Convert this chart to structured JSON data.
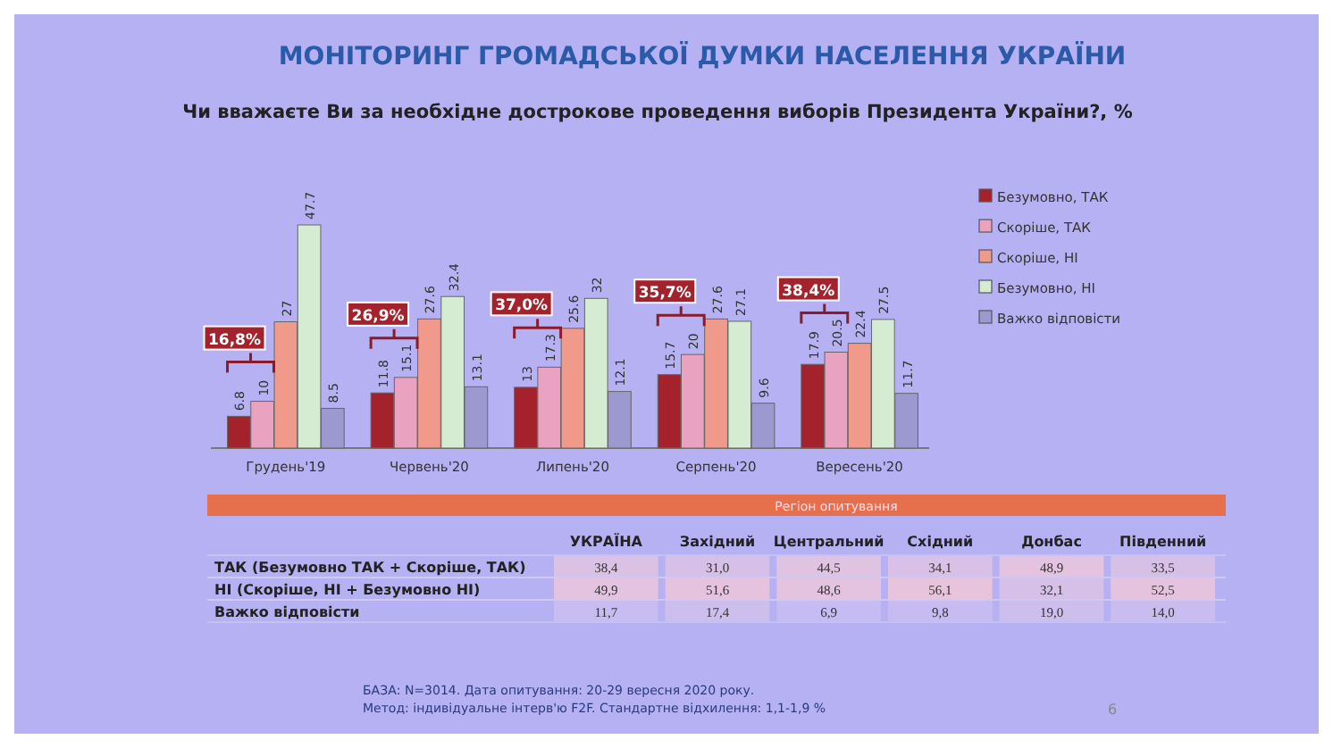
{
  "chart_data": [
    {
      "type": "bar",
      "title": "МОНІТОРИНГ ГРОМАДСЬКОЇ ДУМКИ НАСЕЛЕННЯ УКРАЇНИ",
      "subtitle": "Чи вважаєте Ви за необхідне дострокове проведення виборів Президента  України?, %",
      "categories": [
        "Грудень'19",
        "Червень'20",
        "Липень'20",
        "Серпень'20",
        "Вересень'20"
      ],
      "series": [
        {
          "name": "Безумовно, ТАК",
          "color": "#a3222c",
          "values": [
            6.8,
            11.8,
            13,
            15.7,
            17.9
          ]
        },
        {
          "name": "Скоріше, ТАК",
          "color": "#e9a3c0",
          "values": [
            10,
            15.1,
            17.3,
            20,
            20.5
          ]
        },
        {
          "name": "Скоріше, НІ",
          "color": "#f09a8c",
          "values": [
            27,
            27.6,
            25.6,
            27.6,
            22.4
          ]
        },
        {
          "name": "Безумовно, НІ",
          "color": "#d6ecd2",
          "values": [
            47.7,
            32.4,
            32,
            27.1,
            27.5
          ]
        },
        {
          "name": "Важко відповісти",
          "color": "#9c98d0",
          "values": [
            8.5,
            13.1,
            12.1,
            9.6,
            11.7
          ]
        }
      ],
      "data_labels": true,
      "legend": "right",
      "annotations": [
        "16,8%",
        "26,9%",
        "37,0%",
        "35,7%",
        "38,4%",
        "БАЗА: N=3014. Дата опитування: 20-29 вересня 2020 року.",
        "Метод: індивідуальне інтерв'ю F2F. Стандартне відхилення: 1,1-1,9 %",
        "6"
      ]
    },
    {
      "type": "heatmap",
      "title": "Регіон опитування",
      "categories": [
        "УКРАЇНА",
        "Західний",
        "Центральний",
        "Східний",
        "Донбас",
        "Південний"
      ],
      "y_categories": [
        "ТАК (Безумовно ТАК + Скоріше, ТАК)",
        "НІ (Скоріше, НІ + Безумовно НІ)",
        "Важко відповісти"
      ],
      "cells": [
        [
          38.4,
          31.0,
          44.5,
          34.1,
          48.9,
          33.5
        ],
        [
          49.9,
          51.6,
          48.6,
          56.1,
          32.1,
          52.5
        ],
        [
          11.7,
          17.4,
          6.9,
          9.8,
          19.0,
          14.0
        ]
      ],
      "cell_labels": [
        [
          "38,4",
          "31,0",
          "44,5",
          "34,1",
          "48,9",
          "33,5"
        ],
        [
          "49,9",
          "51,6",
          "48,6",
          "56,1",
          "32,1",
          "52,5"
        ],
        [
          "11,7",
          "17,4",
          "6,9",
          "9,8",
          "19,0",
          "14,0"
        ]
      ]
    }
  ]
}
